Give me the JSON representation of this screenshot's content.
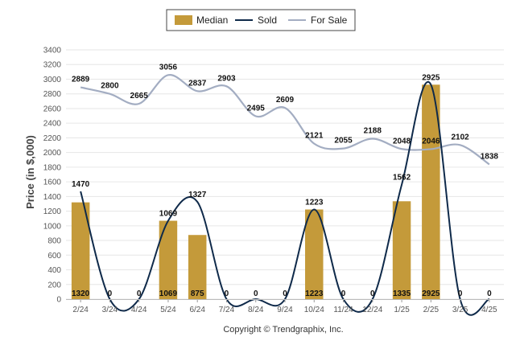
{
  "chart_data": {
    "type": "bar",
    "categories": [
      "2/24",
      "3/24",
      "4/24",
      "5/24",
      "6/24",
      "7/24",
      "8/24",
      "9/24",
      "10/24",
      "11/24",
      "12/24",
      "1/25",
      "2/25",
      "3/25",
      "4/25"
    ],
    "series": [
      {
        "name": "Median",
        "kind": "bar",
        "values": [
          1320,
          0,
          0,
          1069,
          875,
          0,
          0,
          0,
          1223,
          0,
          0,
          1335,
          2925,
          0,
          0
        ],
        "color": "#C49A3A"
      },
      {
        "name": "Sold",
        "kind": "line",
        "values": [
          1470,
          0,
          0,
          1069,
          1327,
          0,
          0,
          0,
          1223,
          0,
          0,
          1562,
          2925,
          0,
          0
        ],
        "color": "#0F2A4A"
      },
      {
        "name": "For Sale",
        "kind": "line",
        "values": [
          2889,
          2800,
          2665,
          3056,
          2837,
          2903,
          2495,
          2609,
          2121,
          2055,
          2188,
          2048,
          2046,
          2102,
          1838
        ],
        "color": "#A3ADC2"
      }
    ],
    "ylabel": "Price (in $,000)",
    "ylim": [
      0,
      3400
    ],
    "yticks": [
      0,
      200,
      400,
      600,
      800,
      1000,
      1200,
      1400,
      1600,
      1800,
      2000,
      2200,
      2400,
      2600,
      2800,
      3000,
      3200,
      3400
    ],
    "grid": true,
    "legend_position": "top-center",
    "credit": "Copyright © Trendgraphix, Inc."
  }
}
